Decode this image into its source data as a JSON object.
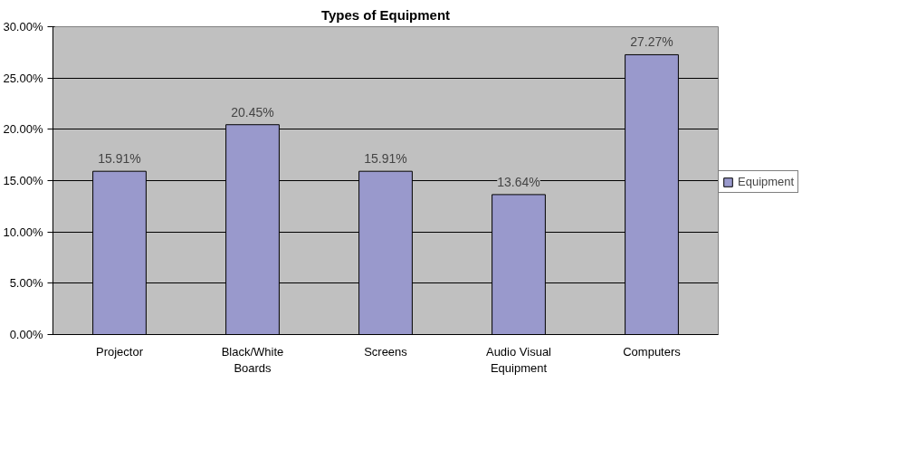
{
  "chart_data": {
    "type": "bar",
    "title": "Types of Equipment",
    "categories": [
      "Projector",
      "Black/White Boards",
      "Screens",
      "Audio Visual Equipment",
      "Computers"
    ],
    "series": [
      {
        "name": "Equipment",
        "color": "#9999cc",
        "values": [
          15.91,
          20.45,
          15.91,
          13.64,
          27.27
        ],
        "value_labels": [
          "15.91%",
          "20.45%",
          "15.91%",
          "13.64%",
          "27.27%"
        ]
      }
    ],
    "ylim": [
      0,
      30
    ],
    "yticks": [
      {
        "value": 0,
        "label": "0.00%"
      },
      {
        "value": 5,
        "label": "5.00%"
      },
      {
        "value": 10,
        "label": "10.00%"
      },
      {
        "value": 15,
        "label": "15.00%"
      },
      {
        "value": 20,
        "label": "20.00%"
      },
      {
        "value": 25,
        "label": "25.00%"
      },
      {
        "value": 30,
        "label": "30.00%"
      }
    ],
    "grid": "y",
    "legend": "right"
  }
}
